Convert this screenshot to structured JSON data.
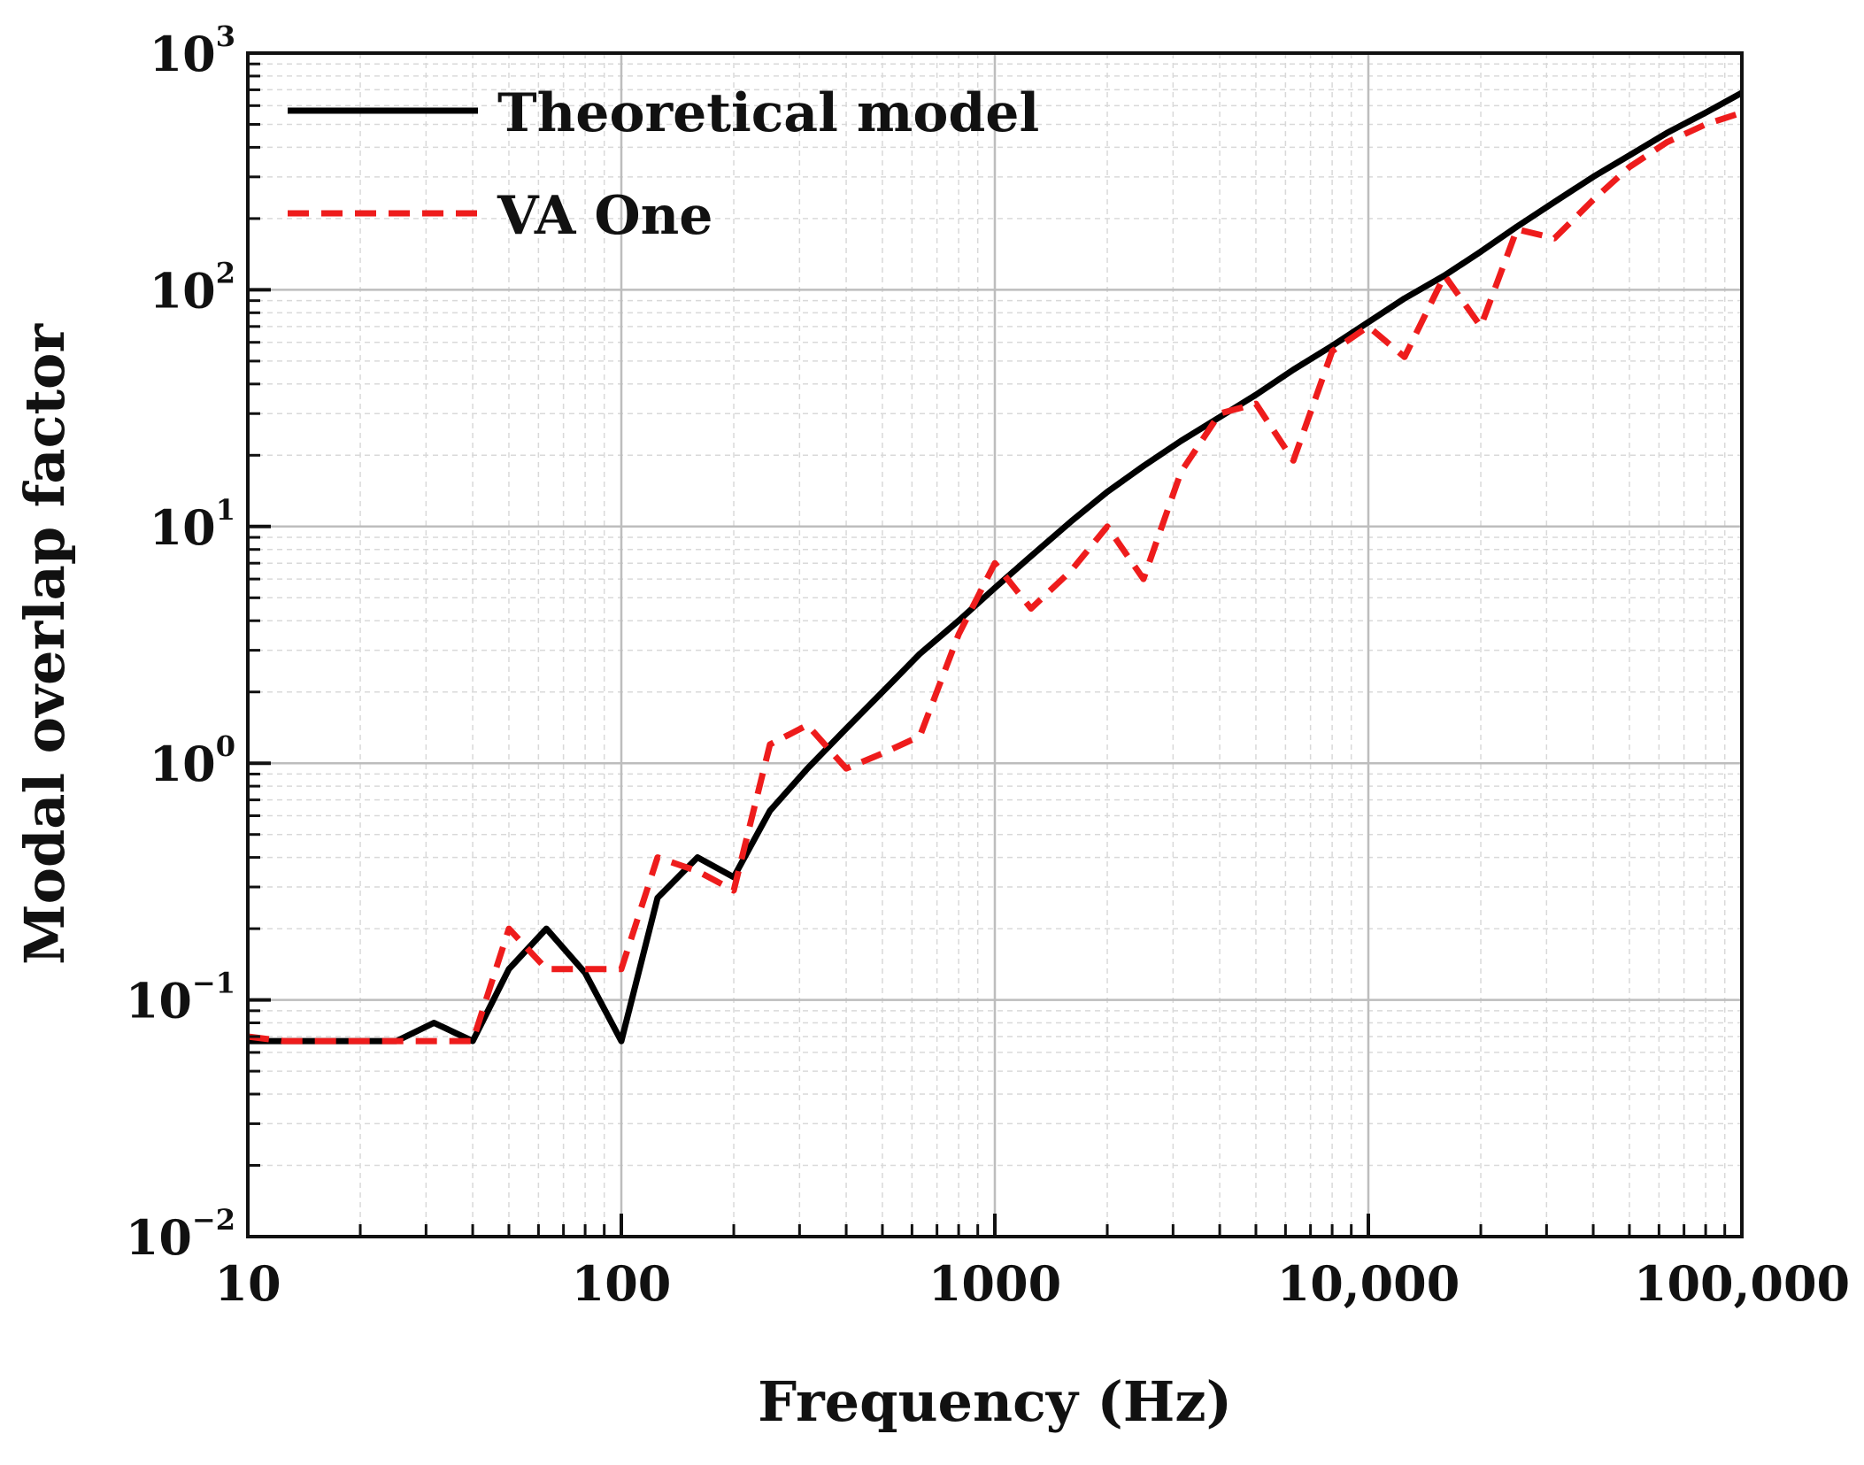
{
  "chart_data": {
    "type": "line",
    "title": "",
    "xlabel": "Frequency (Hz)",
    "ylabel": "Modal overlap factor",
    "xscale": "log",
    "yscale": "log",
    "xlim": [
      10,
      100000
    ],
    "ylim": [
      0.01,
      1000
    ],
    "grid": true,
    "legend_position": "top-left",
    "x_ticks": [
      {
        "value": 10,
        "label": "10"
      },
      {
        "value": 100,
        "label": "100"
      },
      {
        "value": 1000,
        "label": "1000"
      },
      {
        "value": 10000,
        "label": "10,000"
      },
      {
        "value": 100000,
        "label": "100,000"
      }
    ],
    "y_ticks": [
      {
        "value": 0.01,
        "base": "10",
        "exp": "−2"
      },
      {
        "value": 0.1,
        "base": "10",
        "exp": "−1"
      },
      {
        "value": 1,
        "base": "10",
        "exp": "0"
      },
      {
        "value": 10,
        "base": "10",
        "exp": "1"
      },
      {
        "value": 100,
        "base": "10",
        "exp": "2"
      },
      {
        "value": 1000,
        "base": "10",
        "exp": "3"
      }
    ],
    "series": [
      {
        "name": "Theoretical model",
        "color": "#000000",
        "style": "solid",
        "x": [
          10,
          12.5,
          16,
          20,
          25,
          31.5,
          40,
          50,
          63,
          80,
          100,
          125,
          160,
          200,
          250,
          315,
          400,
          500,
          630,
          800,
          1000,
          1250,
          1600,
          2000,
          2500,
          3150,
          4000,
          5000,
          6300,
          8000,
          10000,
          12500,
          16000,
          20000,
          25000,
          31500,
          40000,
          50000,
          63000,
          80000,
          100000
        ],
        "values": [
          0.067,
          0.067,
          0.067,
          0.067,
          0.067,
          0.08,
          0.067,
          0.135,
          0.2,
          0.13,
          0.067,
          0.27,
          0.4,
          0.33,
          0.63,
          0.95,
          1.4,
          2.0,
          2.9,
          4.0,
          5.5,
          7.5,
          10.5,
          14,
          18,
          23,
          29,
          36,
          46,
          58,
          73,
          92,
          115,
          145,
          185,
          235,
          300,
          370,
          460,
          560,
          680
        ]
      },
      {
        "name": "VA One",
        "color": "#ee1c1c",
        "style": "dashed",
        "x": [
          10,
          12.5,
          31.5,
          40,
          50,
          63,
          80,
          100,
          125,
          160,
          200,
          250,
          315,
          400,
          500,
          630,
          800,
          1000,
          1250,
          1600,
          2000,
          2500,
          3150,
          4000,
          5000,
          6300,
          8000,
          10000,
          12500,
          16000,
          20000,
          25000,
          31500,
          40000,
          50000,
          63000,
          80000,
          100000
        ],
        "values": [
          0.07,
          0.067,
          0.067,
          0.067,
          0.2,
          0.135,
          0.135,
          0.135,
          0.4,
          0.35,
          0.29,
          1.2,
          1.45,
          0.95,
          1.1,
          1.3,
          3.5,
          7.0,
          4.5,
          6.5,
          10.0,
          6.0,
          17,
          30,
          33,
          19,
          55,
          70,
          52,
          115,
          70,
          180,
          165,
          240,
          330,
          420,
          500,
          560
        ]
      }
    ]
  }
}
